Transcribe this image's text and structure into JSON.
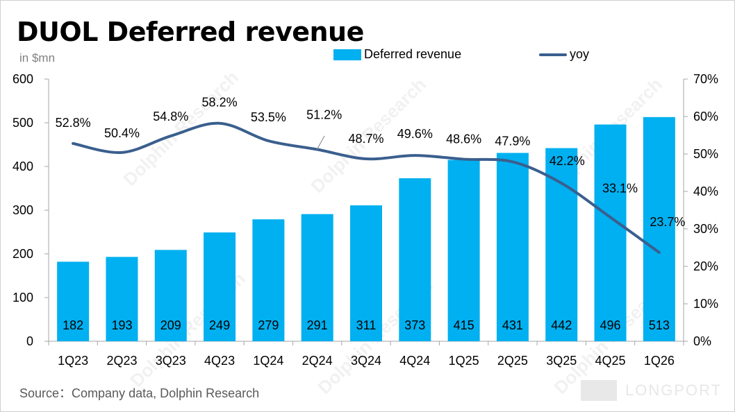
{
  "title": "DUOL Deferred revenue",
  "unit": "in $mn",
  "source": "Source：Company data, Dolphin Research",
  "watermark": "Dolphin Research",
  "logo": "LONGPORT",
  "legend": {
    "bar_label": "Deferred revenue",
    "line_label": "yoy"
  },
  "colors": {
    "bar": "#00b0f0",
    "line": "#3a5f8e"
  },
  "chart_data": {
    "type": "bar",
    "categories": [
      "1Q23",
      "2Q23",
      "3Q23",
      "4Q23",
      "1Q24",
      "2Q24",
      "3Q24",
      "4Q24",
      "1Q25",
      "2Q25",
      "3Q25",
      "4Q25",
      "1Q26"
    ],
    "series": [
      {
        "name": "Deferred revenue",
        "type": "bar",
        "axis": "left",
        "values": [
          182,
          193,
          209,
          249,
          279,
          291,
          311,
          373,
          415,
          431,
          442,
          496,
          513
        ]
      },
      {
        "name": "yoy",
        "type": "line",
        "axis": "right",
        "values": [
          52.8,
          50.4,
          54.8,
          58.2,
          53.5,
          51.2,
          48.7,
          49.6,
          48.6,
          47.9,
          42.2,
          33.1,
          23.7
        ],
        "labels": [
          "52.8%",
          "50.4%",
          "54.8%",
          "58.2%",
          "53.5%",
          "51.2%",
          "48.7%",
          "49.6%",
          "48.6%",
          "47.9%",
          "42.2%",
          "33.1%",
          "23.7%"
        ]
      }
    ],
    "left_axis": {
      "min": 0,
      "max": 600,
      "ticks": [
        "0",
        "100",
        "200",
        "300",
        "400",
        "500",
        "600"
      ]
    },
    "right_axis": {
      "min": 0,
      "max": 70,
      "ticks": [
        "0%",
        "10%",
        "20%",
        "30%",
        "40%",
        "50%",
        "60%",
        "70%"
      ]
    },
    "grid": false,
    "legend_position": "top"
  }
}
